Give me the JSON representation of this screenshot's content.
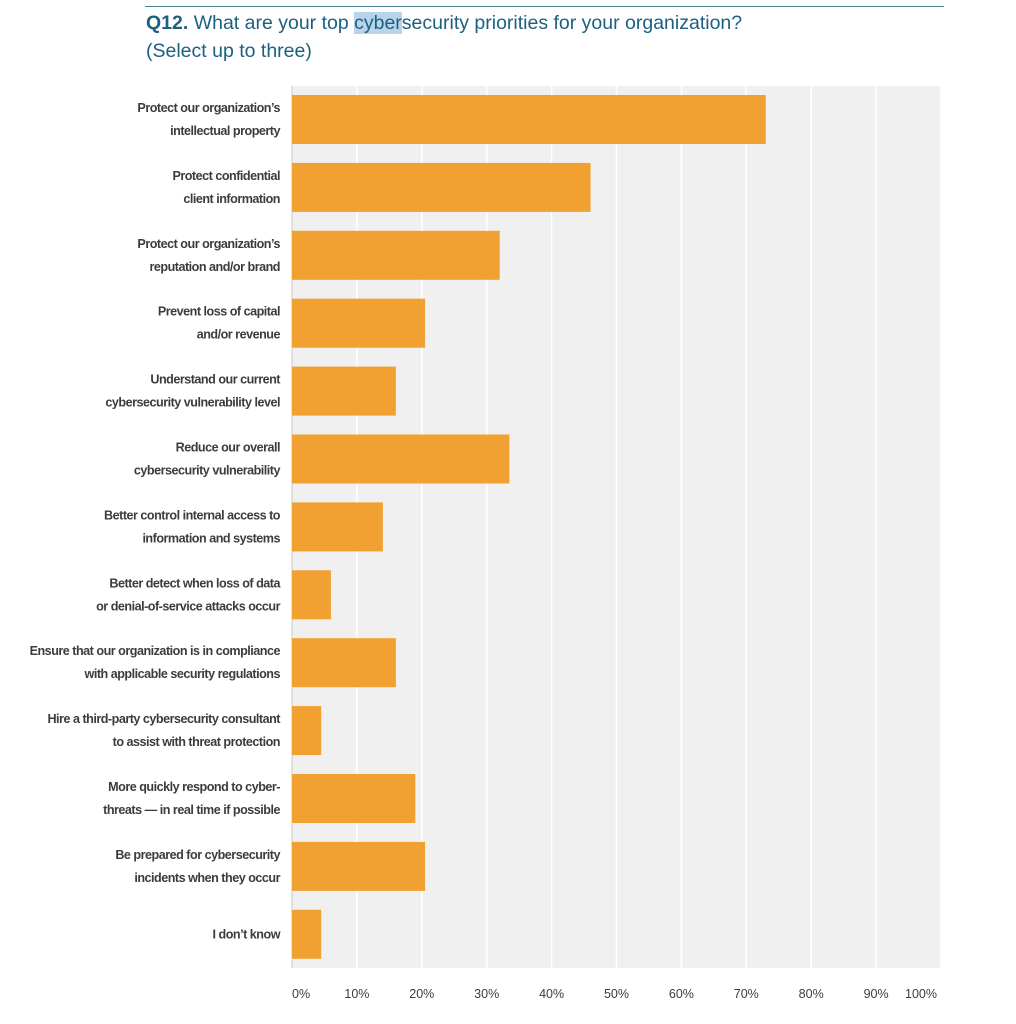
{
  "header": {
    "qnum": "Q12.",
    "q_before": " What are your top ",
    "q_highlight": "cyber",
    "q_after": "security priorities for your organization?",
    "q_line2": "(Select up to three)"
  },
  "colors": {
    "bar": "#f0a132",
    "plot_bg": "#eff0ef",
    "grid": "#ffffff",
    "title": "#1d5f80"
  },
  "chart_data": {
    "type": "bar",
    "orientation": "horizontal",
    "title": "",
    "xlabel": "",
    "ylabel": "",
    "xlim": [
      0,
      100
    ],
    "grid": true,
    "xticks": [
      "0%",
      "10%",
      "20%",
      "30%",
      "40%",
      "50%",
      "60%",
      "70%",
      "80%",
      "90%",
      "100%"
    ],
    "categories": [
      [
        "Protect our organization’s",
        "intellectual property"
      ],
      [
        "Protect confidential",
        "client information"
      ],
      [
        "Protect our organization’s",
        "reputation and/or brand"
      ],
      [
        "Prevent loss of capital",
        "and/or revenue"
      ],
      [
        "Understand our current",
        "cybersecurity vulnerability level"
      ],
      [
        "Reduce our overall",
        "cybersecurity vulnerability"
      ],
      [
        "Better control internal access to",
        "information and systems"
      ],
      [
        "Better detect when loss of data",
        "or denial-of-service attacks occur"
      ],
      [
        "Ensure that our organization is in compliance",
        "with applicable security regulations"
      ],
      [
        "Hire a third-party cybersecurity consultant",
        "to assist with threat protection"
      ],
      [
        "More quickly respond to cyber-",
        "threats — in real time if possible"
      ],
      [
        "Be prepared for cybersecurity",
        "incidents when they occur"
      ],
      [
        "I don’t know"
      ]
    ],
    "values": [
      73,
      46,
      32,
      20.5,
      16,
      33.5,
      14,
      6,
      16,
      4.5,
      19,
      20.5,
      4.5
    ]
  }
}
